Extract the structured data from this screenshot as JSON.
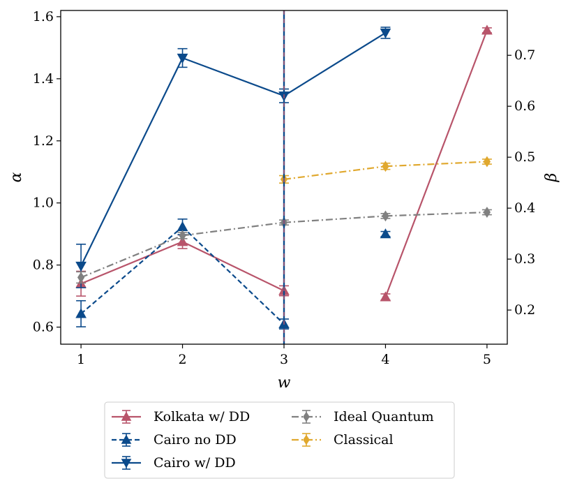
{
  "chart_data": {
    "type": "line",
    "title": "",
    "xlabel": "w",
    "ylabel": "α",
    "y2label": "β",
    "x_ticks": [
      1,
      2,
      3,
      4,
      5
    ],
    "y_ticks": [
      0.6,
      0.8,
      1.0,
      1.2,
      1.4,
      1.6
    ],
    "y_tick_labels": [
      "0.6",
      "0.8",
      "1.0",
      "1.2",
      "1.4",
      "1.6"
    ],
    "y2_ticks": [
      0.2,
      0.3,
      0.4,
      0.5,
      0.6,
      0.7
    ],
    "y2_tick_labels": [
      "0.2",
      "0.3",
      "0.4",
      "0.5",
      "0.6",
      "0.7"
    ],
    "xlim": [
      0.8,
      5.2
    ],
    "ylim": [
      0.545,
      1.62
    ],
    "y2lim": [
      0.133,
      0.788
    ],
    "vertical_line_x": 3,
    "grid": false,
    "legend_position": "below",
    "series": [
      {
        "name": "Kolkata w/ DD",
        "color": "#B8546A",
        "linestyle": "solid",
        "marker": "triangle-up",
        "x": [
          1,
          2,
          3,
          4,
          5
        ],
        "y": [
          0.74,
          0.875,
          0.717,
          0.697,
          1.556
        ],
        "err": [
          0.04,
          0.022,
          0.016,
          0.01,
          0.008
        ],
        "segment_breaks": [
          2
        ]
      },
      {
        "name": "Cairo no DD",
        "color": "#0B4A8B",
        "linestyle": "dashed",
        "marker": "triangle-up",
        "x": [
          1,
          2,
          3,
          4
        ],
        "y": [
          0.643,
          0.923,
          0.61,
          0.9
        ],
        "err": [
          0.042,
          0.025,
          0.016,
          0.008
        ],
        "segment_breaks": [
          2
        ]
      },
      {
        "name": "Cairo w/ DD",
        "color": "#0B4A8B",
        "linestyle": "solid",
        "marker": "triangle-down",
        "x": [
          1,
          2,
          3,
          4
        ],
        "y": [
          0.797,
          1.467,
          1.345,
          1.548
        ],
        "err": [
          0.07,
          0.03,
          0.022,
          0.018
        ],
        "segment_breaks": []
      },
      {
        "name": "Ideal Quantum",
        "color": "#808080",
        "linestyle": "dashdot",
        "marker": "diamond",
        "x": [
          1,
          2,
          3,
          4,
          5
        ],
        "y": [
          0.76,
          0.895,
          0.937,
          0.958,
          0.97
        ],
        "err": [
          0.018,
          0.01,
          0.008,
          0.008,
          0.008
        ],
        "segment_breaks": []
      },
      {
        "name": "Classical",
        "color": "#E0A82E",
        "linestyle": "dashdot",
        "marker": "diamond",
        "x": [
          3,
          4,
          5
        ],
        "y": [
          1.076,
          1.118,
          1.133
        ],
        "err": [
          0.012,
          0.01,
          0.008
        ],
        "segment_breaks": []
      }
    ]
  }
}
